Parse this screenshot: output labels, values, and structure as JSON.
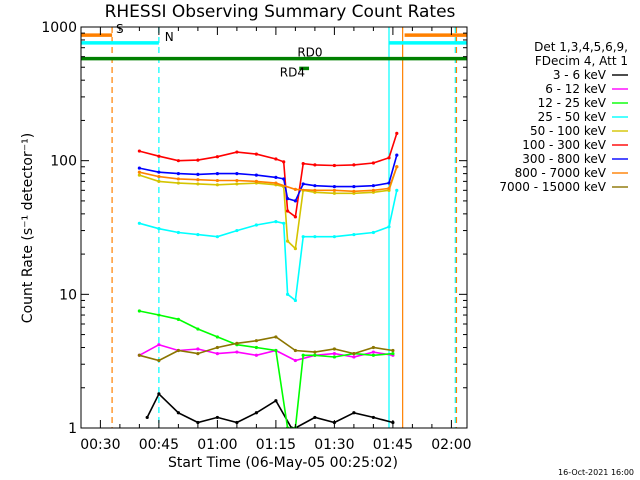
{
  "chart_data": {
    "type": "line",
    "title": "RHESSI Observing Summary Count Rates",
    "xlabel": "Start Time (06-May-05 00:25:02)",
    "ylabel": "Count Rate (s⁻¹ detector⁻¹)",
    "y_scale": "log",
    "ylim": [
      1,
      1000
    ],
    "xlim_minutes": [
      25.03,
      124.0
    ],
    "x_ticks": [
      {
        "m": 30,
        "label": "00:30"
      },
      {
        "m": 45,
        "label": "00:45"
      },
      {
        "m": 60,
        "label": "01:00"
      },
      {
        "m": 75,
        "label": "01:15"
      },
      {
        "m": 90,
        "label": "01:30"
      },
      {
        "m": 105,
        "label": "01:45"
      },
      {
        "m": 120,
        "label": "02:00"
      }
    ],
    "y_ticks": [
      {
        "v": 1,
        "label": "1"
      },
      {
        "v": 10,
        "label": "10"
      },
      {
        "v": 100,
        "label": "100"
      },
      {
        "v": 1000,
        "label": "1000"
      }
    ],
    "legend_header": [
      "Det 1,3,4,5,6,9,",
      "FDecim 4, Att 1"
    ],
    "legend_placement": "right",
    "series": [
      {
        "name": "3 - 6 keV",
        "color": "#000000",
        "x": [
          42,
          45,
          50,
          55,
          60,
          65,
          70,
          75,
          79,
          80,
          85,
          90,
          95,
          100,
          105
        ],
        "y": [
          1.2,
          1.8,
          1.3,
          1.1,
          1.2,
          1.1,
          1.3,
          1.6,
          1.0,
          1.0,
          1.2,
          1.1,
          1.3,
          1.2,
          1.1
        ]
      },
      {
        "name": "6 - 12 keV",
        "color": "#ff00ff",
        "x": [
          40,
          45,
          50,
          55,
          60,
          65,
          70,
          75,
          80,
          85,
          90,
          95,
          100,
          105
        ],
        "y": [
          3.5,
          4.2,
          3.8,
          3.9,
          3.6,
          3.7,
          3.5,
          3.8,
          3.2,
          3.5,
          3.6,
          3.4,
          3.7,
          3.5
        ]
      },
      {
        "name": "12 - 25 keV",
        "color": "#00ff00",
        "x": [
          40,
          45,
          50,
          55,
          60,
          65,
          70,
          75,
          78,
          80,
          82,
          85,
          90,
          95,
          100,
          105
        ],
        "y": [
          7.5,
          7.0,
          6.5,
          5.5,
          4.8,
          4.2,
          4.0,
          3.8,
          1.0,
          1.0,
          3.5,
          3.5,
          3.4,
          3.6,
          3.5,
          3.6
        ]
      },
      {
        "name": "25 - 50 keV",
        "color": "#00ffff",
        "x": [
          40,
          45,
          50,
          55,
          60,
          65,
          70,
          75,
          77,
          78,
          80,
          82,
          85,
          90,
          95,
          100,
          104,
          106
        ],
        "y": [
          34,
          31,
          29,
          28,
          27,
          30,
          33,
          35,
          34,
          10,
          9,
          27,
          27,
          27,
          28,
          29,
          32,
          60
        ]
      },
      {
        "name": "50 - 100 keV",
        "color": "#d4c400",
        "x": [
          40,
          45,
          50,
          55,
          60,
          65,
          70,
          75,
          77,
          78,
          80,
          82,
          85,
          90,
          95,
          100,
          104,
          106
        ],
        "y": [
          78,
          70,
          68,
          67,
          66,
          67,
          68,
          66,
          64,
          25,
          22,
          60,
          58,
          57,
          57,
          58,
          60,
          90
        ]
      },
      {
        "name": "100 - 300 keV",
        "color": "#ff0000",
        "x": [
          40,
          45,
          50,
          55,
          60,
          65,
          70,
          75,
          77,
          78,
          80,
          82,
          85,
          90,
          95,
          100,
          104,
          106
        ],
        "y": [
          118,
          108,
          100,
          101,
          107,
          116,
          112,
          103,
          98,
          42,
          38,
          95,
          93,
          92,
          93,
          96,
          105,
          160
        ]
      },
      {
        "name": "300 - 800 keV",
        "color": "#0000ff",
        "x": [
          40,
          45,
          50,
          55,
          60,
          65,
          70,
          75,
          77,
          78,
          80,
          82,
          85,
          90,
          95,
          100,
          104,
          106
        ],
        "y": [
          88,
          82,
          80,
          79,
          80,
          80,
          78,
          75,
          73,
          52,
          50,
          67,
          65,
          64,
          64,
          65,
          68,
          110
        ]
      },
      {
        "name": "800 - 7000 keV",
        "color": "#ff8000",
        "x": [
          40,
          45,
          50,
          55,
          60,
          65,
          70,
          75,
          80,
          85,
          90,
          95,
          100,
          104,
          106
        ],
        "y": [
          82,
          76,
          73,
          72,
          71,
          71,
          70,
          68,
          61,
          60,
          60,
          59,
          60,
          62,
          90
        ]
      },
      {
        "name": "7000 - 15000 keV",
        "color": "#8b7500",
        "x": [
          40,
          45,
          50,
          55,
          60,
          65,
          70,
          75,
          80,
          85,
          90,
          95,
          100,
          105
        ],
        "y": [
          3.5,
          3.2,
          3.8,
          3.6,
          4.0,
          4.3,
          4.5,
          4.8,
          3.8,
          3.7,
          3.9,
          3.6,
          4.0,
          3.8
        ]
      }
    ],
    "annotations": [
      {
        "label": "S",
        "color": "#ff8000",
        "x_start": 25.03,
        "x_end": 33.0,
        "level": 870,
        "text_x": 34
      },
      {
        "label": "S",
        "color": "#ff8000",
        "x_start": 108.0,
        "x_end": 124.0,
        "level": 870
      },
      {
        "label": "N",
        "color": "#00ffff",
        "x_start": 25.03,
        "x_end": 45.0,
        "level": 760,
        "text_x": 46.5
      },
      {
        "label": "N",
        "color": "#00ffff",
        "x_start": 104.0,
        "x_end": 124.0,
        "level": 760
      },
      {
        "label": "RD0",
        "color": "#008000",
        "x_start": 25.03,
        "x_end": 124.0,
        "level": 580,
        "text_x": 80.5
      },
      {
        "label": "RD4",
        "color": "#008000",
        "x_start": 81.0,
        "x_end": 83.5,
        "level": 490,
        "text_x": 76
      }
    ],
    "vertical_markers": [
      {
        "x": 33.0,
        "color": "#ff8000",
        "style": "dashed"
      },
      {
        "x": 45.0,
        "color": "#00ffff",
        "style": "dashed"
      },
      {
        "x": 104.0,
        "color": "#00ffff",
        "style": "solid"
      },
      {
        "x": 107.5,
        "color": "#ff8000",
        "style": "solid"
      },
      {
        "x": 121.0,
        "color": "#00ffff",
        "style": "dashed"
      },
      {
        "x": 121.3,
        "color": "#ff8000",
        "style": "dashed"
      }
    ],
    "timestamp": "16-Oct-2021 16:00"
  }
}
